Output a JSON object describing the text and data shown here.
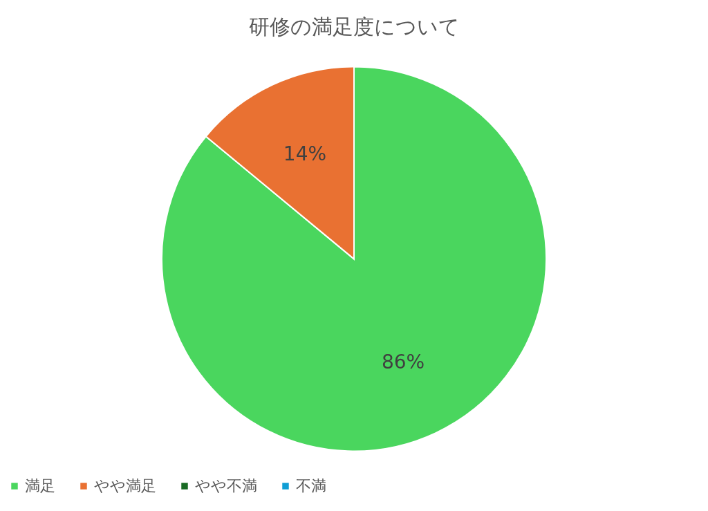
{
  "chart_data": {
    "type": "pie",
    "title": "研修の満足度について",
    "categories": [
      "満足",
      "やや満足",
      "やや不満",
      "不満"
    ],
    "values": [
      86,
      14,
      0,
      0
    ],
    "colors": [
      "#4ad65e",
      "#e97132",
      "#196b24",
      "#0f9ed5"
    ],
    "value_labels": [
      "86%",
      "14%",
      null,
      null
    ],
    "legend": "bottom"
  }
}
